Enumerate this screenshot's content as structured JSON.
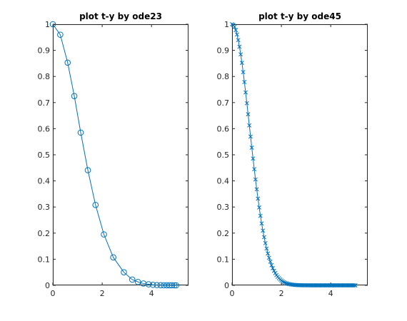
{
  "chart_data": [
    {
      "type": "line",
      "title": "plot t-y by ode23",
      "xlabel": "",
      "ylabel": "",
      "xlim": [
        0,
        5.5
      ],
      "ylim": [
        0,
        1
      ],
      "xticks": [
        0,
        2,
        4
      ],
      "xtick_labels": [
        "0",
        "2",
        "4"
      ],
      "yticks": [
        0,
        0.1,
        0.2,
        0.3,
        0.4,
        0.5,
        0.6,
        0.7,
        0.8,
        0.9,
        1
      ],
      "ytick_labels": [
        "0",
        "0.1",
        "0.2",
        "0.3",
        "0.4",
        "0.5",
        "0.6",
        "0.7",
        "0.8",
        "0.9",
        "1"
      ],
      "grid": true,
      "marker": "circle",
      "color": "#0072BD",
      "series": [
        {
          "x": [
            0,
            0.3,
            0.6,
            0.87,
            1.13,
            1.42,
            1.73,
            2.07,
            2.45,
            2.88,
            3.22,
            3.45,
            3.67,
            3.88,
            4.06,
            4.22,
            4.37,
            4.5,
            4.62,
            4.73,
            4.83,
            4.93,
            5.0
          ],
          "y": [
            1,
            0.96,
            0.853,
            0.725,
            0.585,
            0.441,
            0.308,
            0.195,
            0.107,
            0.05,
            0.022,
            0.013,
            0.007,
            0.004,
            0.002,
            0.001,
            0.0006,
            0.0003,
            0.0002,
            0.0001,
            5e-05,
            2e-05,
            1e-05
          ]
        }
      ]
    },
    {
      "type": "line",
      "title": "plot t-y by ode45",
      "xlabel": "",
      "ylabel": "",
      "xlim": [
        0,
        5.5
      ],
      "ylim": [
        0,
        1
      ],
      "xticks": [
        0,
        2,
        4
      ],
      "xtick_labels": [
        "0",
        "2",
        "4"
      ],
      "yticks": [
        0,
        0.1,
        0.2,
        0.3,
        0.4,
        0.5,
        0.6,
        0.7,
        0.8,
        0.9,
        1
      ],
      "ytick_labels": [
        "0",
        "0.1",
        "0.2",
        "0.3",
        "0.4",
        "0.5",
        "0.6",
        "0.7",
        "0.8",
        "0.9",
        "1"
      ],
      "grid": true,
      "marker": "x",
      "color": "#0072BD",
      "series": [
        {
          "x": [
            0,
            0.05,
            0.1,
            0.15,
            0.2,
            0.25,
            0.3,
            0.35,
            0.4,
            0.45,
            0.5,
            0.55,
            0.6,
            0.65,
            0.7,
            0.75,
            0.8,
            0.85,
            0.9,
            0.95,
            1.0,
            1.05,
            1.1,
            1.15,
            1.2,
            1.25,
            1.3,
            1.35,
            1.4,
            1.45,
            1.5,
            1.55,
            1.6,
            1.65,
            1.7,
            1.75,
            1.8,
            1.85,
            1.9,
            1.95,
            2.0,
            2.05,
            2.1,
            2.15,
            2.2,
            2.25,
            2.3,
            2.35,
            2.4,
            2.45,
            2.5,
            2.55,
            2.6,
            2.65,
            2.7,
            2.75,
            2.8,
            2.85,
            2.9,
            2.95,
            3.0,
            3.05,
            3.1,
            3.15,
            3.2,
            3.25,
            3.3,
            3.35,
            3.4,
            3.45,
            3.5,
            3.55,
            3.6,
            3.65,
            3.7,
            3.75,
            3.8,
            3.85,
            3.9,
            3.95,
            4.0,
            4.05,
            4.1,
            4.15,
            4.2,
            4.25,
            4.3,
            4.35,
            4.4,
            4.45,
            4.5,
            4.55,
            4.6,
            4.65,
            4.7,
            4.75,
            4.8,
            4.85,
            4.9,
            4.95,
            5.0
          ],
          "y": [
            1.0,
            0.9975,
            0.99,
            0.9778,
            0.9608,
            0.9394,
            0.9139,
            0.8847,
            0.8521,
            0.8167,
            0.7788,
            0.739,
            0.6977,
            0.6554,
            0.6126,
            0.5698,
            0.5273,
            0.4855,
            0.4449,
            0.4056,
            0.3679,
            0.332,
            0.2982,
            0.2663,
            0.2369,
            0.2096,
            0.1845,
            0.1616,
            0.1409,
            0.1221,
            0.1054,
            0.0906,
            0.0773,
            0.0656,
            0.0556,
            0.0468,
            0.0392,
            0.0327,
            0.0271,
            0.0223,
            0.0183,
            0.0149,
            0.0121,
            0.0098,
            0.0079,
            0.0063,
            0.005,
            0.004,
            0.0032,
            0.0025,
            0.0019,
            0.0015,
            0.0012,
            0.0009,
            0.0007,
            0.0005,
            0.0004,
            0.0003,
            0.0002,
            0.0002,
            0.0001,
            0.0001,
            0.0001,
            5e-05,
            4e-05,
            3e-05,
            2e-05,
            1e-05,
            1e-05,
            1e-05,
            0,
            0,
            0,
            0,
            0,
            0,
            0,
            0,
            0,
            0,
            0,
            0,
            0,
            0,
            0,
            0,
            0,
            0,
            0,
            0,
            0,
            0,
            0,
            0,
            0,
            0,
            0,
            0,
            0,
            0,
            0
          ]
        }
      ]
    }
  ]
}
